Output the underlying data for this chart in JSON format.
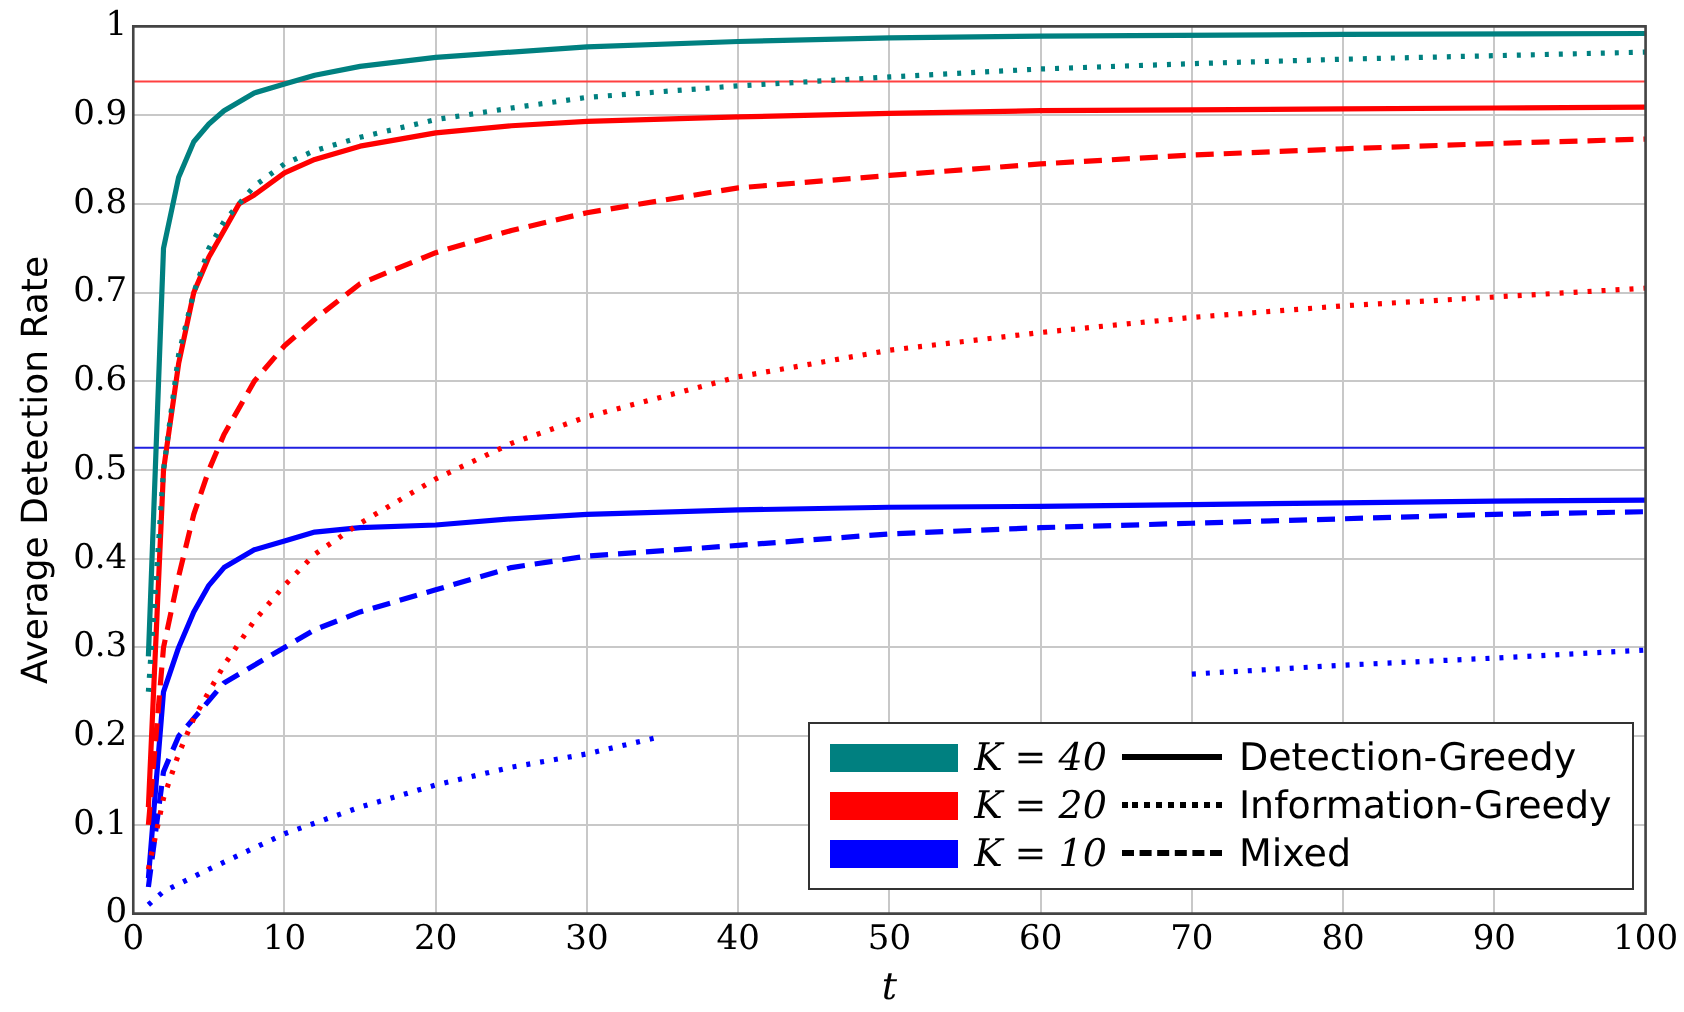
{
  "chart_data": {
    "type": "line",
    "xlabel": "t",
    "ylabel": "Average Detection Rate",
    "xlim": [
      0,
      100
    ],
    "xticks": [
      0,
      10,
      20,
      30,
      40,
      50,
      60,
      70,
      80,
      90,
      100
    ],
    "ylim": [
      0,
      1
    ],
    "yticks": [
      0,
      0.1,
      0.2,
      0.3,
      0.4,
      0.5,
      0.6,
      0.7,
      0.8,
      0.9,
      1
    ],
    "grid": true,
    "legend": false,
    "marker": "none",
    "annotations": [
      "K = 40",
      "K = 20",
      "K = 10",
      "Detection-Greedy",
      "Information-Greedy",
      "Mixed"
    ],
    "ref_lines": [
      {
        "axis": "y",
        "value": 0.938,
        "color": "#ff4040"
      },
      {
        "axis": "y",
        "value": 0.525,
        "color": "#2020e0"
      }
    ],
    "series": [
      {
        "color": "#008080",
        "line_style": "solid",
        "x": [
          1,
          2,
          3,
          4,
          5,
          6,
          8,
          10,
          12,
          15,
          20,
          30,
          40,
          50,
          60,
          80,
          100
        ],
        "values": [
          0.29,
          0.75,
          0.83,
          0.87,
          0.89,
          0.905,
          0.925,
          0.935,
          0.945,
          0.955,
          0.965,
          0.977,
          0.983,
          0.987,
          0.989,
          0.991,
          0.992
        ]
      },
      {
        "color": "#008080",
        "line_style": "dotted",
        "x": [
          1,
          2,
          3,
          4,
          5,
          6,
          8,
          10,
          12,
          15,
          20,
          25,
          30,
          40,
          50,
          60,
          70,
          80,
          90,
          100
        ],
        "values": [
          0.25,
          0.5,
          0.63,
          0.7,
          0.75,
          0.78,
          0.82,
          0.845,
          0.86,
          0.875,
          0.895,
          0.908,
          0.92,
          0.933,
          0.943,
          0.952,
          0.958,
          0.963,
          0.967,
          0.971
        ]
      },
      {
        "color": "#ff0000",
        "line_style": "solid",
        "x": [
          1,
          2,
          3,
          4,
          5,
          6,
          7,
          8,
          10,
          12,
          15,
          20,
          25,
          30,
          40,
          50,
          60,
          70,
          80,
          90,
          100
        ],
        "values": [
          0.12,
          0.5,
          0.62,
          0.7,
          0.74,
          0.77,
          0.8,
          0.81,
          0.835,
          0.85,
          0.865,
          0.88,
          0.888,
          0.893,
          0.898,
          0.902,
          0.905,
          0.906,
          0.907,
          0.908,
          0.909
        ]
      },
      {
        "color": "#ff0000",
        "line_style": "dotted",
        "x": [
          1,
          2,
          3,
          4,
          6,
          8,
          10,
          12,
          15,
          20,
          25,
          30,
          40,
          50,
          60,
          70,
          80,
          90,
          100
        ],
        "values": [
          0.05,
          0.13,
          0.18,
          0.22,
          0.28,
          0.33,
          0.37,
          0.405,
          0.44,
          0.49,
          0.53,
          0.56,
          0.605,
          0.635,
          0.655,
          0.672,
          0.685,
          0.695,
          0.705
        ]
      },
      {
        "color": "#ff0000",
        "line_style": "dashed",
        "x": [
          1,
          2,
          3,
          4,
          5,
          6,
          8,
          10,
          12,
          15,
          20,
          25,
          30,
          40,
          50,
          60,
          70,
          80,
          90,
          100
        ],
        "values": [
          0.1,
          0.3,
          0.38,
          0.45,
          0.5,
          0.54,
          0.6,
          0.64,
          0.67,
          0.71,
          0.745,
          0.77,
          0.79,
          0.818,
          0.832,
          0.845,
          0.855,
          0.862,
          0.868,
          0.873
        ]
      },
      {
        "color": "#0000ff",
        "line_style": "solid",
        "x": [
          1,
          2,
          3,
          4,
          5,
          6,
          8,
          10,
          12,
          15,
          20,
          25,
          30,
          40,
          50,
          60,
          70,
          80,
          90,
          100
        ],
        "values": [
          0.04,
          0.25,
          0.3,
          0.34,
          0.37,
          0.39,
          0.41,
          0.42,
          0.43,
          0.435,
          0.438,
          0.445,
          0.45,
          0.455,
          0.458,
          0.459,
          0.461,
          0.463,
          0.465,
          0.466
        ]
      },
      {
        "color": "#0000ff",
        "line_style": "dotted",
        "x": [
          1,
          2,
          5,
          10,
          15,
          20,
          25,
          30,
          35,
          40,
          50,
          60,
          70,
          80,
          90,
          100
        ],
        "values": [
          0.01,
          0.025,
          0.05,
          0.09,
          0.12,
          0.145,
          0.165,
          0.18,
          0.2,
          null,
          null,
          null,
          0.27,
          0.28,
          0.288,
          0.297
        ]
      },
      {
        "color": "#0000ff",
        "line_style": "dashed",
        "x": [
          1,
          2,
          3,
          4,
          6,
          8,
          10,
          12,
          15,
          20,
          25,
          30,
          40,
          50,
          60,
          70,
          80,
          90,
          100
        ],
        "values": [
          0.03,
          0.16,
          0.2,
          0.22,
          0.26,
          0.28,
          0.3,
          0.32,
          0.34,
          0.365,
          0.39,
          0.403,
          0.415,
          0.428,
          0.435,
          0.44,
          0.445,
          0.45,
          0.453
        ]
      }
    ]
  }
}
